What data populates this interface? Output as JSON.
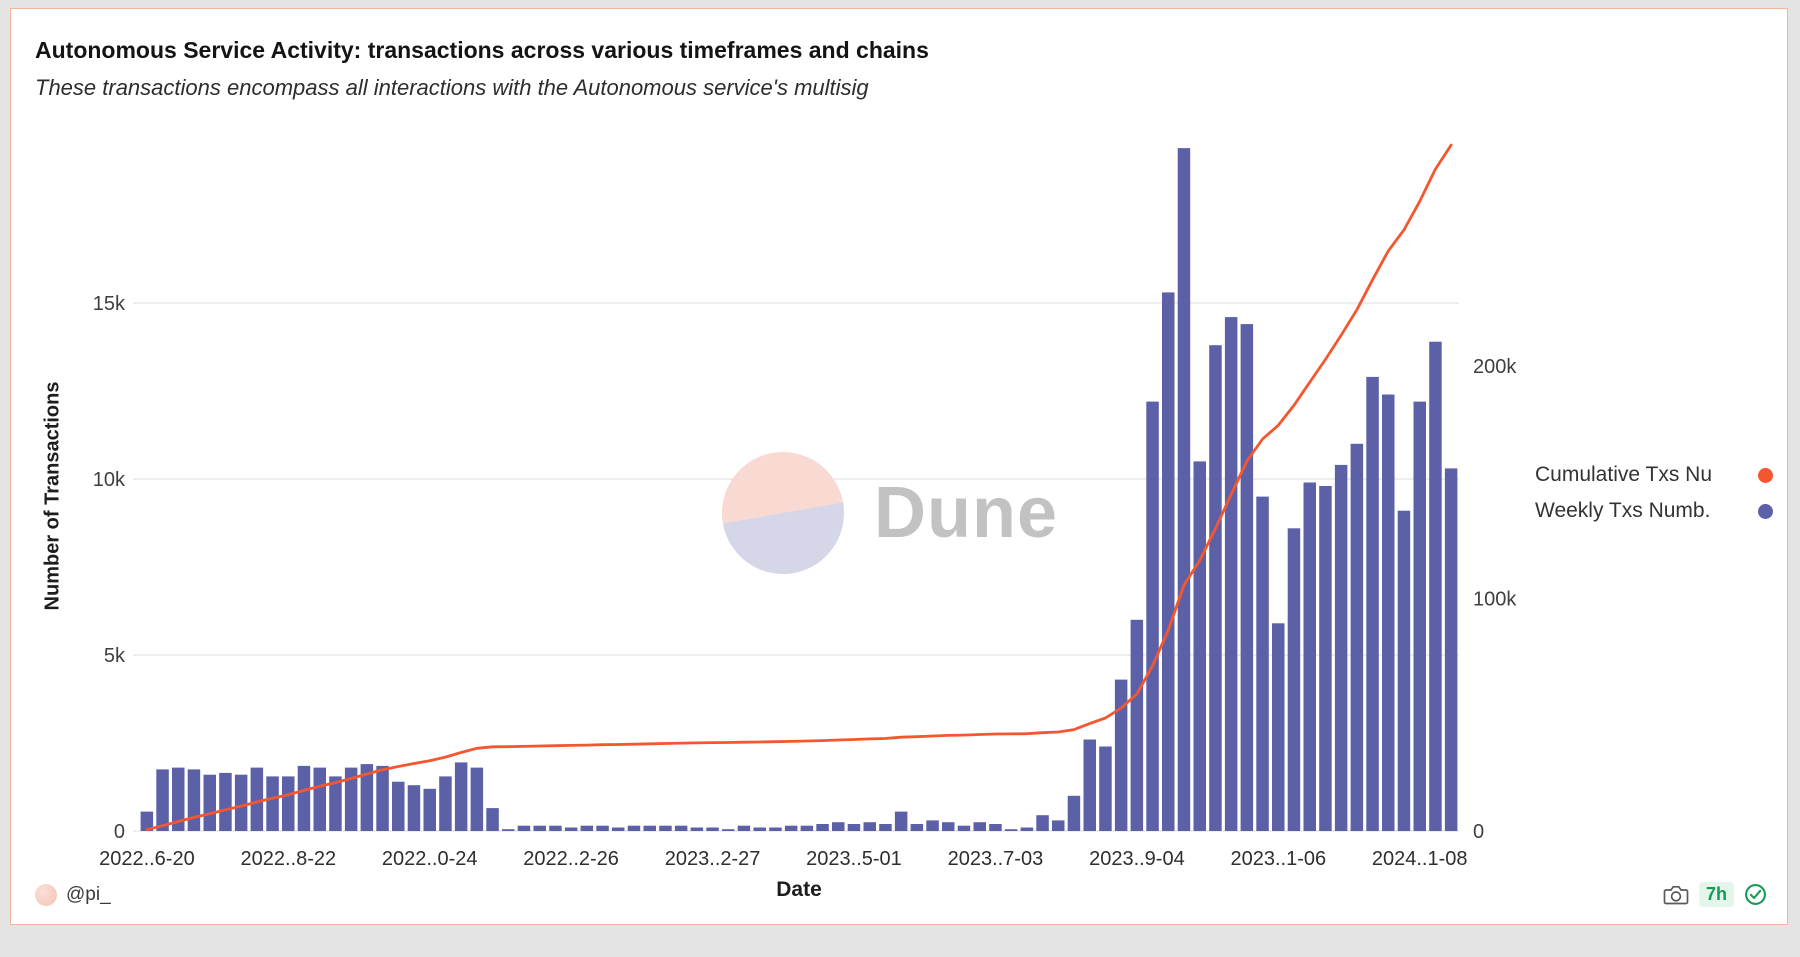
{
  "header": {
    "title": "Autonomous Service Activity: transactions across various timeframes and chains",
    "subtitle": "These transactions encompass all interactions with the Autonomous service's multisig"
  },
  "watermark": {
    "text": "Dune"
  },
  "legend": [
    {
      "label": "Cumulative Txs Nu",
      "color": "#f4572f",
      "series": "cumulative"
    },
    {
      "label": "Weekly Txs Numb.",
      "color": "#5c61a7",
      "series": "weekly"
    }
  ],
  "footer": {
    "author": "@pi_",
    "age": "7h"
  },
  "chart_data": {
    "type": "bar",
    "overlay_line": true,
    "title": "Autonomous Service Activity: transactions across various timeframes and chains",
    "xlabel": "Date",
    "ylabel": "Number of Transactions",
    "grid": true,
    "legend_position": "right",
    "x_tick_labels": [
      "2022..6-20",
      "2022..8-22",
      "2022..0-24",
      "2022..2-26",
      "2023..2-27",
      "2023..5-01",
      "2023..7-03",
      "2023..9-04",
      "2023..1-06",
      "2024..1-08"
    ],
    "x_tick_indices": [
      0,
      9,
      18,
      27,
      36,
      45,
      54,
      63,
      72,
      81
    ],
    "left_axis": {
      "ticks": [
        0,
        5000,
        10000,
        15000
      ],
      "tick_labels": [
        "0",
        "5k",
        "10k",
        "15k"
      ],
      "max": 19700
    },
    "right_axis": {
      "ticks": [
        0,
        100000,
        200000
      ],
      "tick_labels": [
        "0",
        "100k",
        "200k"
      ],
      "max": 300000
    },
    "series": [
      {
        "name": "Weekly Txs Numb.",
        "type": "bar",
        "axis": "left",
        "color": "#5c61a7",
        "values": [
          550,
          1750,
          1800,
          1750,
          1600,
          1650,
          1600,
          1800,
          1550,
          1550,
          1850,
          1800,
          1550,
          1800,
          1900,
          1850,
          1400,
          1300,
          1200,
          1550,
          1950,
          1800,
          650,
          50,
          150,
          150,
          150,
          100,
          150,
          150,
          100,
          150,
          150,
          150,
          150,
          100,
          100,
          50,
          150,
          100,
          100,
          150,
          150,
          200,
          250,
          200,
          250,
          200,
          550,
          200,
          300,
          250,
          150,
          250,
          200,
          50,
          100,
          450,
          300,
          1000,
          2600,
          2400,
          4300,
          6000,
          12200,
          15300,
          19400,
          10500,
          13800,
          14600,
          14400,
          9500,
          5900,
          8600,
          9900,
          9800,
          10400,
          11000,
          12900,
          12400,
          9100,
          12200,
          13900,
          10300
        ]
      },
      {
        "name": "Cumulative Txs Nu",
        "type": "line",
        "axis": "right",
        "color": "#f4572f",
        "values": [
          550,
          2300,
          4100,
          5850,
          7450,
          9100,
          10700,
          12500,
          14050,
          15600,
          17450,
          19250,
          20800,
          22600,
          24500,
          26350,
          27750,
          29050,
          30250,
          31800,
          33750,
          35550,
          36200,
          36250,
          36400,
          36550,
          36700,
          36800,
          36950,
          37100,
          37200,
          37350,
          37500,
          37650,
          37800,
          37900,
          38000,
          38050,
          38200,
          38300,
          38400,
          38550,
          38700,
          38900,
          39150,
          39350,
          39600,
          39800,
          40350,
          40550,
          40850,
          41100,
          41250,
          41500,
          41700,
          41750,
          41850,
          42300,
          42600,
          43600,
          46200,
          48600,
          52900,
          58900,
          71100,
          86400,
          105800,
          116300,
          130100,
          144700,
          159100,
          168600,
          174500,
          183100,
          193000,
          202800,
          213200,
          224200,
          237100,
          249500,
          258600,
          270800,
          284700,
          295000
        ]
      }
    ]
  }
}
